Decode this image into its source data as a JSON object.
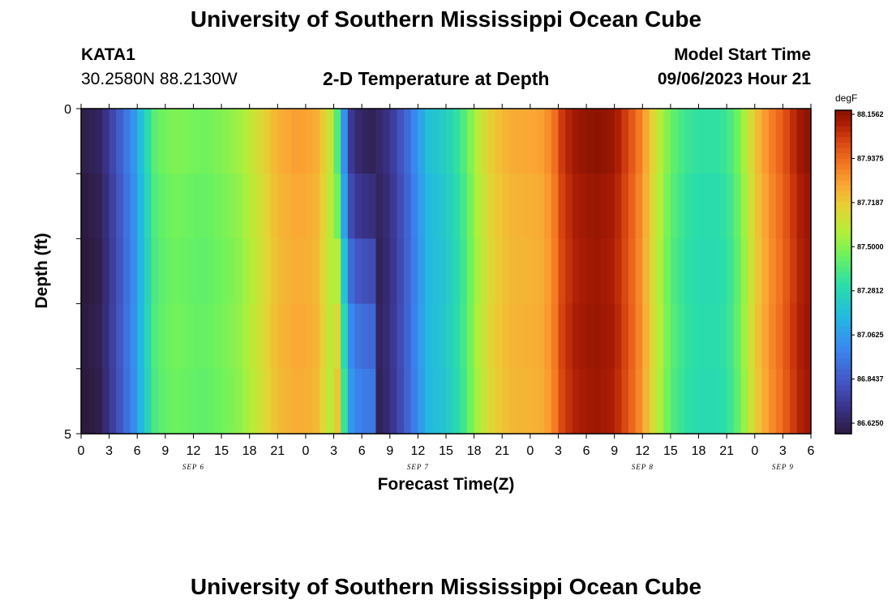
{
  "header": {
    "title": "University of Southern Mississippi Ocean Cube",
    "station_id": "KATA1",
    "station_coords": "30.2580N  88.2130W",
    "plot_title": "2-D Temperature at Depth",
    "model_start_label": "Model Start Time",
    "model_start_value": "09/06/2023 Hour 21",
    "footer_title": "University of Southern Mississippi Ocean Cube"
  },
  "chart_data": {
    "type": "heatmap",
    "xlabel": "Forecast Time(Z)",
    "ylabel": "Depth (ft)",
    "ylim": [
      0,
      5
    ],
    "y_ticks": [
      "0",
      "5"
    ],
    "x_tick_labels": [
      "0",
      "3",
      "6",
      "9",
      "12",
      "15",
      "18",
      "21",
      "0",
      "3",
      "6",
      "9",
      "12",
      "15",
      "18",
      "21",
      "0",
      "3",
      "6",
      "9",
      "12",
      "15",
      "18",
      "21",
      "0",
      "3",
      "6"
    ],
    "day_labels": [
      {
        "label": "SEP 6",
        "hour": 12
      },
      {
        "label": "SEP 7",
        "hour": 36
      },
      {
        "label": "SEP 8",
        "hour": 60
      },
      {
        "label": "SEP 9",
        "hour": 75
      }
    ],
    "x_hours_range": [
      0,
      78
    ],
    "colorbar": {
      "unit": "degF",
      "min": 86.625,
      "max": 88.1562,
      "labels": [
        "88.1562",
        "87.9375",
        "87.7187",
        "87.5000",
        "87.2812",
        "87.0625",
        "86.8437",
        "86.6250"
      ]
    },
    "depth_levels": 5,
    "time_profile": [
      [
        0,
        86.64
      ],
      [
        2,
        86.68
      ],
      [
        4,
        86.88
      ],
      [
        5.5,
        87.05
      ],
      [
        6.5,
        87.22
      ],
      [
        8,
        87.45
      ],
      [
        10,
        87.5
      ],
      [
        13,
        87.47
      ],
      [
        15,
        87.5
      ],
      [
        17,
        87.55
      ],
      [
        19,
        87.66
      ],
      [
        21,
        87.78
      ],
      [
        23,
        87.82
      ],
      [
        25,
        87.8
      ],
      [
        26,
        87.7
      ],
      [
        26.8,
        87.6
      ],
      [
        27.2,
        87.5
      ],
      [
        28,
        87.1
      ],
      [
        29,
        86.72
      ],
      [
        31,
        86.66
      ],
      [
        33,
        86.75
      ],
      [
        35,
        86.95
      ],
      [
        37,
        87.2
      ],
      [
        39,
        87.26
      ],
      [
        40,
        87.33
      ],
      [
        41,
        87.42
      ],
      [
        42,
        87.55
      ],
      [
        43,
        87.65
      ],
      [
        44,
        87.72
      ],
      [
        46,
        87.79
      ],
      [
        48,
        87.8
      ],
      [
        49.5,
        87.82
      ],
      [
        50.5,
        87.9
      ],
      [
        51.5,
        88.05
      ],
      [
        53,
        88.12
      ],
      [
        55,
        88.15
      ],
      [
        57,
        88.12
      ],
      [
        58.5,
        88.0
      ],
      [
        60,
        87.86
      ],
      [
        61,
        87.7
      ],
      [
        62,
        87.58
      ],
      [
        63,
        87.46
      ],
      [
        64,
        87.4
      ],
      [
        65,
        87.36
      ],
      [
        66,
        87.34
      ],
      [
        68,
        87.34
      ],
      [
        69,
        87.37
      ],
      [
        70,
        87.45
      ],
      [
        71,
        87.58
      ],
      [
        72,
        87.72
      ],
      [
        73,
        87.82
      ],
      [
        74,
        87.9
      ],
      [
        75,
        87.96
      ],
      [
        76,
        88.05
      ],
      [
        77,
        88.12
      ],
      [
        78,
        88.15
      ]
    ],
    "depth_profile": {
      "cold_pool_hours": [
        27,
        31.5
      ],
      "cold_pool_depth_offsets": [
        0,
        0.08,
        0.2,
        0.28,
        0.34
      ],
      "depth_offsets": [
        0,
        -0.02,
        -0.03,
        -0.02,
        -0.03
      ]
    }
  }
}
